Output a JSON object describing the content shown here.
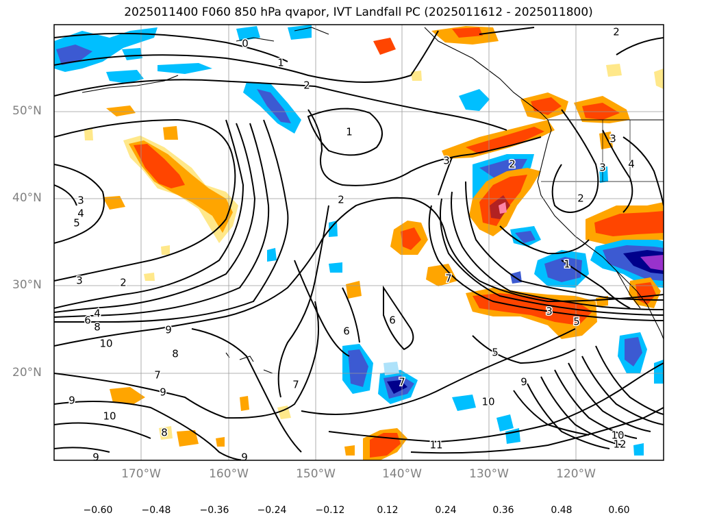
{
  "title": "2025011400 F060 850 hPa qvapor, IVT Landfall PC (2025011612 - 2025011800)",
  "lat_labels": [
    "50°N",
    "40°N",
    "30°N",
    "20°N"
  ],
  "lon_labels": [
    "170°W",
    "160°W",
    "150°W",
    "140°W",
    "130°W",
    "120°W"
  ],
  "colorbar": {
    "colors": [
      "#9932cc",
      "#00008b",
      "#3c5ad2",
      "#00bfff",
      "#aee2fa",
      "#ffffff",
      "#ffe88a",
      "#ffa500",
      "#ff4500",
      "#b22222",
      "#ff85a8"
    ],
    "ticks": [
      "−0.60",
      "−0.48",
      "−0.36",
      "−0.24",
      "−0.12",
      "0.12",
      "0.24",
      "0.36",
      "0.48",
      "0.60"
    ]
  },
  "contour_labels": [
    "0",
    "1",
    "2",
    "2",
    "1",
    "2",
    "3",
    "2",
    "3",
    "4",
    "5",
    "3",
    "2",
    "6",
    "4",
    "8",
    "10",
    "9",
    "8",
    "7",
    "9",
    "10",
    "9",
    "8",
    "9",
    "9",
    "7",
    "6",
    "6",
    "7",
    "7",
    "5",
    "3",
    "5",
    "1",
    "9",
    "10",
    "11",
    "10",
    "12",
    "2",
    "3",
    "3",
    "4"
  ]
}
